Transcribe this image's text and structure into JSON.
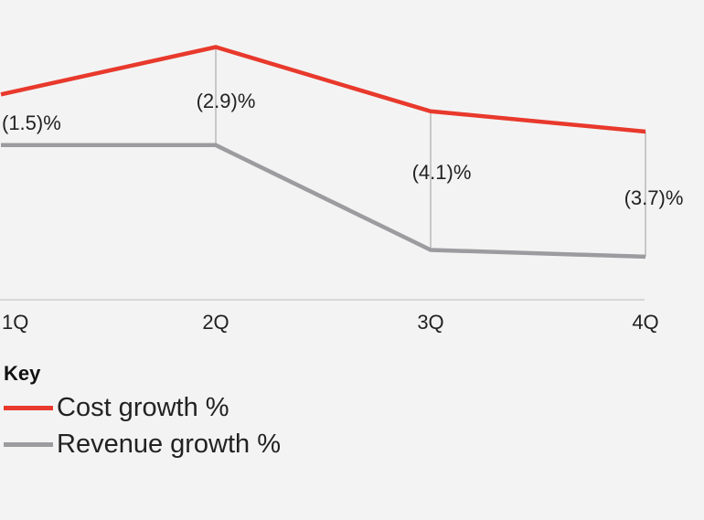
{
  "chart_data": {
    "type": "line",
    "categories": [
      "1Q",
      "2Q",
      "3Q",
      "4Q"
    ],
    "series": [
      {
        "name": "Cost growth %",
        "color": "#e8392c",
        "values": [
          5.1,
          6.5,
          4.6,
          4.0
        ]
      },
      {
        "name": "Revenue growth %",
        "color": "#9c9ca0",
        "values": [
          3.6,
          3.6,
          0.5,
          0.3
        ]
      }
    ],
    "gap_labels": [
      "(1.5)%",
      "(2.9)%",
      "(4.1)%",
      "(3.7)%"
    ],
    "title": "",
    "xlabel": "",
    "ylabel": "",
    "legend_title": "Key",
    "legend_position": "bottom-left",
    "grid": false
  }
}
